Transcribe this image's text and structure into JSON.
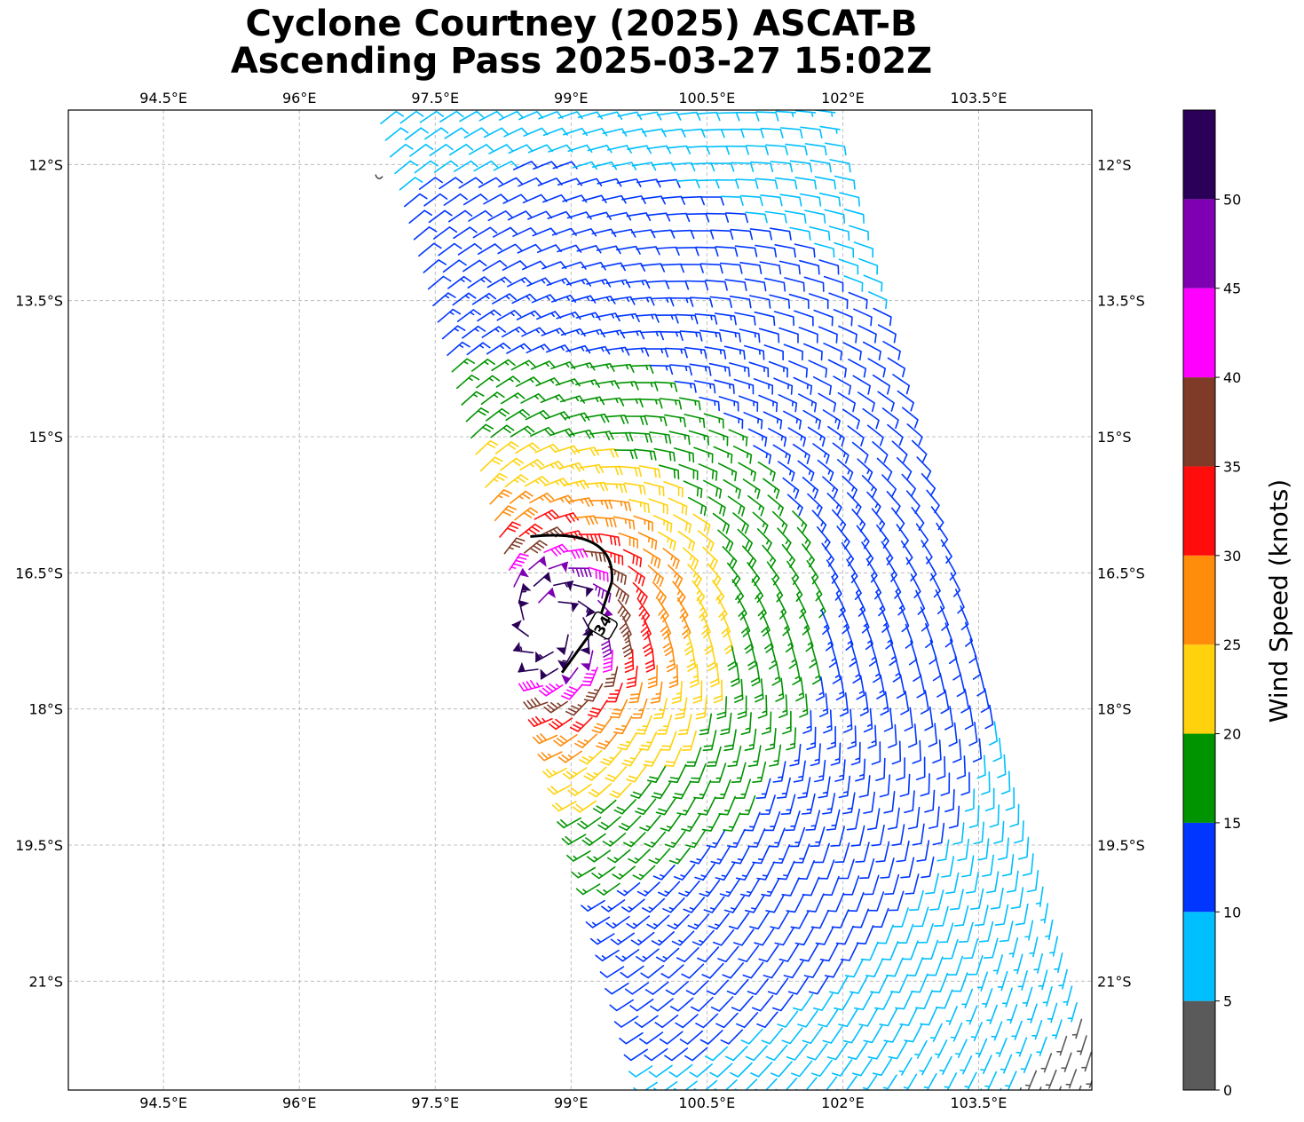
{
  "title_line1": "Cyclone Courtney (2025) ASCAT-B",
  "title_line2": "Ascending Pass 2025-03-27 15:02Z",
  "map": {
    "lon_range": [
      93.45,
      104.75
    ],
    "lat_range": [
      -22.2,
      -11.4
    ],
    "lon_ticks": [
      94.5,
      96,
      97.5,
      99,
      100.5,
      102,
      103.5
    ],
    "lon_tick_labels": [
      "94.5°E",
      "96°E",
      "97.5°E",
      "99°E",
      "100.5°E",
      "102°E",
      "103.5°E"
    ],
    "lat_ticks": [
      -12,
      -13.5,
      -15,
      -16.5,
      -18,
      -19.5,
      -21
    ],
    "lat_tick_labels": [
      "12°S",
      "13.5°S",
      "15°S",
      "16.5°S",
      "18°S",
      "19.5°S",
      "21°S"
    ],
    "gridlines": true,
    "storm_center": {
      "lon": 98.75,
      "lat": -17.05
    },
    "wind_radius_label": "34",
    "island_marker": {
      "lon": 96.9,
      "lat": -12.15
    }
  },
  "colorbar": {
    "label": "Wind Speed (knots)",
    "bounds": [
      0,
      5,
      10,
      15,
      20,
      25,
      30,
      35,
      40,
      45,
      50,
      55
    ],
    "tick_labels": [
      "0",
      "5",
      "10",
      "15",
      "20",
      "25",
      "30",
      "35",
      "40",
      "45",
      "50"
    ],
    "colors": [
      "#5a5a5a",
      "#00bfff",
      "#0036ff",
      "#009400",
      "#ffd20d",
      "#ff8c0a",
      "#ff0d0d",
      "#7f3b28",
      "#ff00ff",
      "#7f00b2",
      "#2b0058"
    ]
  }
}
